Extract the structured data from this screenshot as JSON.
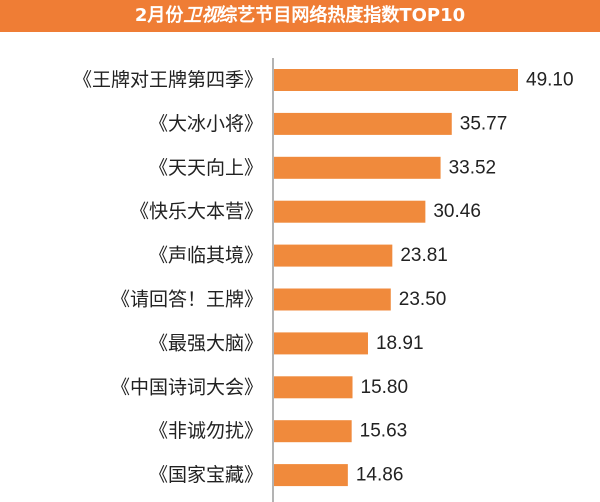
{
  "header": {
    "title_prefix": "2月份",
    "title_emphasis": "卫视",
    "title_suffix": "综艺节目网络热度指数TOP10"
  },
  "colors": {
    "accent": "#ef7d35",
    "bar": "#f08a3c",
    "axis": "#9a9a9a",
    "text": "#222222"
  },
  "chart_data": {
    "type": "bar",
    "orientation": "horizontal",
    "title": "2月份卫视综艺节目网络热度指数TOP10",
    "categories": [
      "《王牌对王牌第四季》",
      "《大冰小将》",
      "《天天向上》",
      "《快乐大本营》",
      "《声临其境》",
      "《请回答！王牌》",
      "《最强大脑》",
      "《中国诗词大会》",
      "《非诚勿扰》",
      "《国家宝藏》"
    ],
    "values": [
      49.1,
      35.77,
      33.52,
      30.46,
      23.81,
      23.5,
      18.91,
      15.8,
      15.63,
      14.86
    ],
    "value_labels": [
      "49.10",
      "35.77",
      "33.52",
      "30.46",
      "23.81",
      "23.50",
      "18.91",
      "15.80",
      "15.63",
      "14.86"
    ],
    "xlim": [
      0,
      49.1
    ],
    "grid": false,
    "legend": "none"
  }
}
